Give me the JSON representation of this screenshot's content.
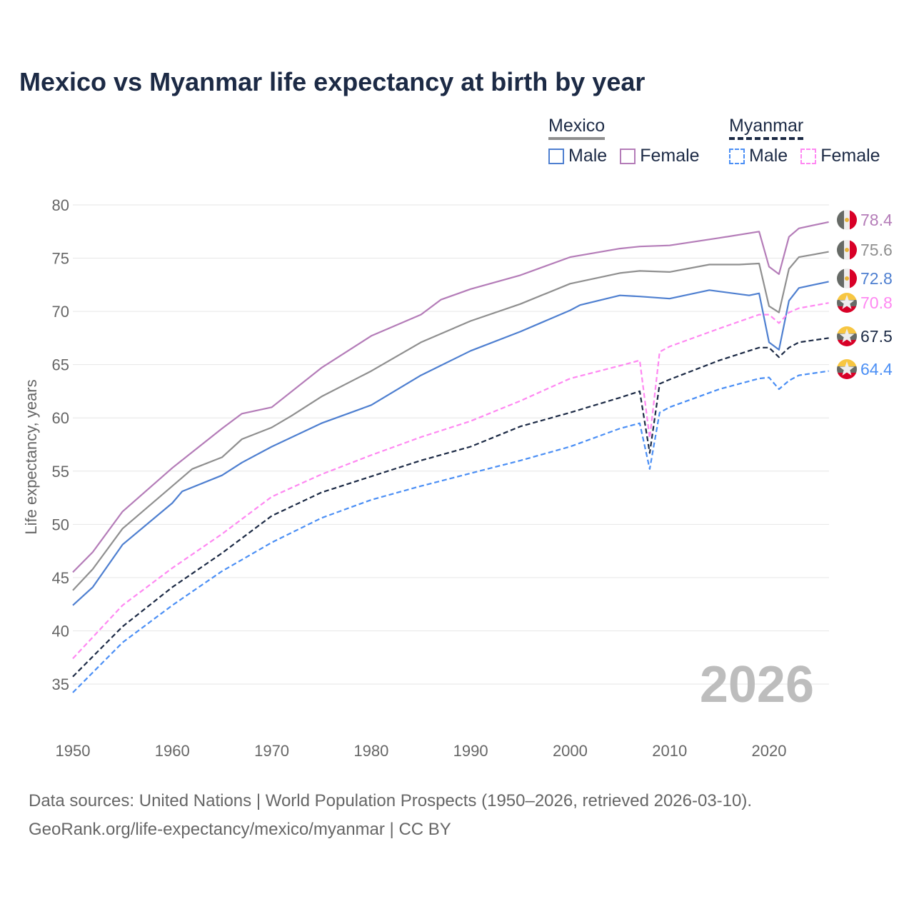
{
  "title": "Mexico vs Myanmar life expectancy at birth by year",
  "legend": {
    "groups": [
      {
        "name": "Mexico",
        "line_color": "#8f8f8f",
        "dashed": false,
        "items": [
          {
            "label": "Male",
            "color": "#4e7fd0"
          },
          {
            "label": "Female",
            "color": "#b47cb8"
          }
        ]
      },
      {
        "name": "Myanmar",
        "line_color": "#1c2a45",
        "dashed": true,
        "items": [
          {
            "label": "Male",
            "color": "#4b8ff5"
          },
          {
            "label": "Female",
            "color": "#ff88f2"
          }
        ]
      }
    ]
  },
  "watermark_year": "2026",
  "footer": {
    "line1": "Data sources: United Nations | World Population Prospects (1950–2026, retrieved 2026-03-10).",
    "line2": "GeoRank.org/life-expectancy/mexico/myanmar | CC BY"
  },
  "chart_data": {
    "type": "line",
    "title": "Mexico vs Myanmar life expectancy at birth by year",
    "xlabel": "",
    "ylabel": "Life expectancy, years",
    "xlim": [
      1950,
      2026
    ],
    "ylim": [
      33,
      81
    ],
    "xticks": [
      "1950",
      "1960",
      "1970",
      "1980",
      "1990",
      "2000",
      "2010",
      "2020"
    ],
    "yticks": [
      "35",
      "40",
      "45",
      "50",
      "55",
      "60",
      "65",
      "70",
      "75",
      "80"
    ],
    "grid": true,
    "legend_position": "top-right",
    "series": [
      {
        "name": "Mexico Female",
        "country": "mexico",
        "color": "#b47cb8",
        "dashed": false,
        "end_label": "78.4",
        "points": [
          [
            1950,
            45.5
          ],
          [
            1952,
            47.4
          ],
          [
            1955,
            51.2
          ],
          [
            1960,
            55.3
          ],
          [
            1965,
            59.0
          ],
          [
            1967,
            60.4
          ],
          [
            1970,
            61.0
          ],
          [
            1975,
            64.7
          ],
          [
            1980,
            67.7
          ],
          [
            1985,
            69.7
          ],
          [
            1987,
            71.1
          ],
          [
            1990,
            72.1
          ],
          [
            1995,
            73.4
          ],
          [
            2000,
            75.1
          ],
          [
            2005,
            75.9
          ],
          [
            2007,
            76.1
          ],
          [
            2010,
            76.2
          ],
          [
            2015,
            76.9
          ],
          [
            2019,
            77.5
          ],
          [
            2020,
            74.2
          ],
          [
            2021,
            73.5
          ],
          [
            2022,
            77.0
          ],
          [
            2023,
            77.8
          ],
          [
            2026,
            78.4
          ]
        ]
      },
      {
        "name": "Mexico",
        "country": "mexico",
        "color": "#8f8f8f",
        "dashed": false,
        "end_label": "75.6",
        "points": [
          [
            1950,
            43.8
          ],
          [
            1952,
            45.8
          ],
          [
            1955,
            49.6
          ],
          [
            1960,
            53.6
          ],
          [
            1962,
            55.2
          ],
          [
            1965,
            56.3
          ],
          [
            1967,
            58.0
          ],
          [
            1970,
            59.1
          ],
          [
            1972,
            60.2
          ],
          [
            1975,
            62.0
          ],
          [
            1980,
            64.4
          ],
          [
            1985,
            67.1
          ],
          [
            1990,
            69.1
          ],
          [
            1995,
            70.7
          ],
          [
            2000,
            72.6
          ],
          [
            2005,
            73.6
          ],
          [
            2007,
            73.8
          ],
          [
            2010,
            73.7
          ],
          [
            2014,
            74.4
          ],
          [
            2017,
            74.4
          ],
          [
            2019,
            74.5
          ],
          [
            2020,
            70.5
          ],
          [
            2021,
            69.9
          ],
          [
            2022,
            74.0
          ],
          [
            2023,
            75.1
          ],
          [
            2026,
            75.6
          ]
        ]
      },
      {
        "name": "Mexico Male",
        "country": "mexico",
        "color": "#4e7fd0",
        "dashed": false,
        "end_label": "72.8",
        "points": [
          [
            1950,
            42.4
          ],
          [
            1952,
            44.1
          ],
          [
            1955,
            48.1
          ],
          [
            1960,
            52.0
          ],
          [
            1961,
            53.1
          ],
          [
            1965,
            54.6
          ],
          [
            1967,
            55.8
          ],
          [
            1970,
            57.3
          ],
          [
            1975,
            59.5
          ],
          [
            1980,
            61.2
          ],
          [
            1985,
            64.0
          ],
          [
            1990,
            66.3
          ],
          [
            1995,
            68.1
          ],
          [
            2000,
            70.1
          ],
          [
            2001,
            70.6
          ],
          [
            2005,
            71.5
          ],
          [
            2007,
            71.4
          ],
          [
            2010,
            71.2
          ],
          [
            2014,
            72.0
          ],
          [
            2018,
            71.5
          ],
          [
            2019,
            71.7
          ],
          [
            2020,
            67.1
          ],
          [
            2021,
            66.4
          ],
          [
            2022,
            71.0
          ],
          [
            2023,
            72.2
          ],
          [
            2026,
            72.8
          ]
        ]
      },
      {
        "name": "Myanmar Female",
        "country": "myanmar",
        "color": "#ff88f2",
        "dashed": true,
        "end_label": "70.8",
        "points": [
          [
            1950,
            37.4
          ],
          [
            1955,
            42.4
          ],
          [
            1960,
            45.9
          ],
          [
            1965,
            49.1
          ],
          [
            1970,
            52.6
          ],
          [
            1975,
            54.7
          ],
          [
            1980,
            56.5
          ],
          [
            1985,
            58.2
          ],
          [
            1990,
            59.7
          ],
          [
            1995,
            61.6
          ],
          [
            2000,
            63.7
          ],
          [
            2005,
            64.9
          ],
          [
            2007,
            65.4
          ],
          [
            2008,
            58.1
          ],
          [
            2009,
            66.2
          ],
          [
            2010,
            66.7
          ],
          [
            2015,
            68.4
          ],
          [
            2019,
            69.7
          ],
          [
            2020,
            69.7
          ],
          [
            2021,
            68.9
          ],
          [
            2022,
            69.9
          ],
          [
            2023,
            70.3
          ],
          [
            2026,
            70.8
          ]
        ]
      },
      {
        "name": "Myanmar",
        "country": "myanmar",
        "color": "#1c2a45",
        "dashed": true,
        "end_label": "67.5",
        "points": [
          [
            1950,
            35.7
          ],
          [
            1955,
            40.4
          ],
          [
            1960,
            44.1
          ],
          [
            1965,
            47.3
          ],
          [
            1970,
            50.8
          ],
          [
            1975,
            53.0
          ],
          [
            1980,
            54.5
          ],
          [
            1985,
            56.0
          ],
          [
            1990,
            57.3
          ],
          [
            1995,
            59.2
          ],
          [
            2000,
            60.5
          ],
          [
            2005,
            61.9
          ],
          [
            2007,
            62.5
          ],
          [
            2008,
            56.7
          ],
          [
            2009,
            63.2
          ],
          [
            2010,
            63.6
          ],
          [
            2015,
            65.4
          ],
          [
            2019,
            66.6
          ],
          [
            2020,
            66.6
          ],
          [
            2021,
            65.7
          ],
          [
            2022,
            66.6
          ],
          [
            2023,
            67.1
          ],
          [
            2026,
            67.5
          ]
        ]
      },
      {
        "name": "Myanmar Male",
        "country": "myanmar",
        "color": "#4b8ff5",
        "dashed": true,
        "end_label": "64.4",
        "points": [
          [
            1950,
            34.2
          ],
          [
            1955,
            38.9
          ],
          [
            1960,
            42.4
          ],
          [
            1965,
            45.6
          ],
          [
            1970,
            48.3
          ],
          [
            1975,
            50.6
          ],
          [
            1980,
            52.3
          ],
          [
            1985,
            53.6
          ],
          [
            1990,
            54.8
          ],
          [
            1995,
            56.0
          ],
          [
            2000,
            57.3
          ],
          [
            2005,
            59.0
          ],
          [
            2007,
            59.5
          ],
          [
            2008,
            55.2
          ],
          [
            2009,
            60.5
          ],
          [
            2010,
            61.0
          ],
          [
            2015,
            62.7
          ],
          [
            2019,
            63.7
          ],
          [
            2020,
            63.8
          ],
          [
            2021,
            62.7
          ],
          [
            2022,
            63.5
          ],
          [
            2023,
            64.0
          ],
          [
            2026,
            64.4
          ]
        ]
      }
    ]
  }
}
